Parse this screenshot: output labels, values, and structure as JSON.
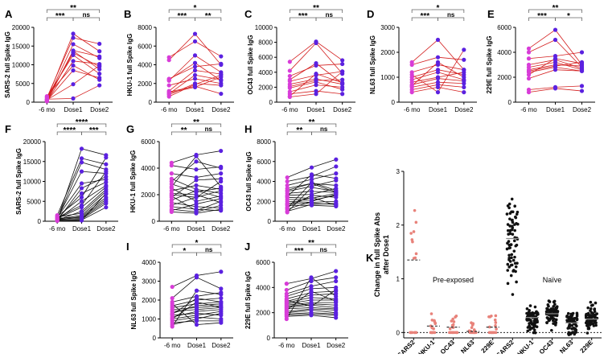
{
  "colors": {
    "pre_dot": "#d83cd8",
    "post_dot": "#5b21e0",
    "red_line": "#d42020",
    "black_line": "#111111",
    "k_pre": "#e8827a",
    "k_naive": "#111111",
    "bracket": "#666666"
  },
  "chart_data": [
    {
      "panel": "A",
      "type": "line",
      "line_color": "red",
      "ylabel": "SARS-2 full Spike IgG",
      "ylim": [
        0,
        20000
      ],
      "yticks": [
        0,
        5000,
        10000,
        15000,
        20000
      ],
      "categories": [
        "-6 mo",
        "Dose1",
        "Dose2"
      ],
      "series": [
        [
          200,
          13800,
          12200
        ],
        [
          500,
          15500,
          11800
        ],
        [
          1400,
          12600,
          7600
        ],
        [
          900,
          13200,
          9500
        ],
        [
          300,
          11000,
          10200
        ],
        [
          700,
          18300,
          13600
        ],
        [
          1200,
          17200,
          15600
        ],
        [
          400,
          8500,
          6500
        ],
        [
          600,
          4800,
          9800
        ],
        [
          1600,
          9800,
          6000
        ],
        [
          350,
          13700,
          8800
        ],
        [
          800,
          1000,
          4500
        ]
      ],
      "brackets": [
        {
          "a": 0,
          "b": 1,
          "t": "***",
          "lvl": 1
        },
        {
          "a": 1,
          "b": 2,
          "t": "ns",
          "lvl": 1
        },
        {
          "a": 0,
          "b": 2,
          "t": "**",
          "lvl": 2
        }
      ]
    },
    {
      "panel": "B",
      "type": "line",
      "line_color": "red",
      "ylabel": "HKU-1 full Spike IgG",
      "ylim": [
        0,
        8000
      ],
      "yticks": [
        0,
        2000,
        4000,
        6000,
        8000
      ],
      "categories": [
        "-6 mo",
        "Dose1",
        "Dose2"
      ],
      "series": [
        [
          4500,
          7300,
          4000
        ],
        [
          4800,
          6500,
          4900
        ],
        [
          2300,
          5000,
          3200
        ],
        [
          2400,
          4200,
          2300
        ],
        [
          2500,
          3800,
          4100
        ],
        [
          1200,
          3400,
          3000
        ],
        [
          900,
          2900,
          2400
        ],
        [
          1800,
          2500,
          2000
        ],
        [
          800,
          2000,
          1800
        ],
        [
          600,
          1900,
          2900
        ],
        [
          1100,
          1700,
          900
        ],
        [
          1000,
          1600,
          2700
        ]
      ],
      "brackets": [
        {
          "a": 0,
          "b": 1,
          "t": "***",
          "lvl": 1
        },
        {
          "a": 1,
          "b": 2,
          "t": "**",
          "lvl": 1
        },
        {
          "a": 0,
          "b": 2,
          "t": "*",
          "lvl": 2
        }
      ]
    },
    {
      "panel": "C",
      "type": "line",
      "line_color": "red",
      "ylabel": "OC43 full Spike IgG",
      "ylim": [
        0,
        10000
      ],
      "yticks": [
        0,
        2000,
        4000,
        6000,
        8000,
        10000
      ],
      "categories": [
        "-6 mo",
        "Dose1",
        "Dose2"
      ],
      "series": [
        [
          5400,
          8100,
          5600
        ],
        [
          4200,
          7900,
          3800
        ],
        [
          3500,
          4900,
          5100
        ],
        [
          2800,
          3600,
          4100
        ],
        [
          2400,
          3100,
          2400
        ],
        [
          2100,
          2900,
          3000
        ],
        [
          1900,
          2700,
          1700
        ],
        [
          1400,
          2300,
          2000
        ],
        [
          1100,
          1500,
          1100
        ],
        [
          800,
          3800,
          2600
        ],
        [
          700,
          1100,
          4100
        ],
        [
          3000,
          5200,
          2500
        ]
      ],
      "brackets": [
        {
          "a": 0,
          "b": 1,
          "t": "***",
          "lvl": 1
        },
        {
          "a": 1,
          "b": 2,
          "t": "ns",
          "lvl": 1
        },
        {
          "a": 0,
          "b": 2,
          "t": "**",
          "lvl": 2
        }
      ]
    },
    {
      "panel": "D",
      "type": "line",
      "line_color": "red",
      "ylabel": "NL63 full Spike IgG",
      "ylim": [
        0,
        3000
      ],
      "yticks": [
        0,
        1000,
        2000,
        3000
      ],
      "categories": [
        "-6 mo",
        "Dose1",
        "Dose2"
      ],
      "series": [
        [
          1600,
          2500,
          1300
        ],
        [
          1500,
          1800,
          1700
        ],
        [
          1200,
          1500,
          1300
        ],
        [
          1000,
          1300,
          1100
        ],
        [
          900,
          1200,
          900
        ],
        [
          800,
          1000,
          1200
        ],
        [
          700,
          950,
          850
        ],
        [
          600,
          800,
          750
        ],
        [
          500,
          700,
          600
        ],
        [
          400,
          600,
          400
        ],
        [
          1100,
          400,
          2100
        ],
        [
          650,
          1600,
          1000
        ]
      ],
      "brackets": [
        {
          "a": 0,
          "b": 1,
          "t": "***",
          "lvl": 1
        },
        {
          "a": 1,
          "b": 2,
          "t": "ns",
          "lvl": 1
        },
        {
          "a": 0,
          "b": 2,
          "t": "*",
          "lvl": 2
        }
      ]
    },
    {
      "panel": "E",
      "type": "line",
      "line_color": "red",
      "ylabel": "229E full Spike IgG",
      "ylim": [
        0,
        6000
      ],
      "yticks": [
        0,
        2000,
        4000,
        6000
      ],
      "categories": [
        "-6 mo",
        "Dose1",
        "Dose2"
      ],
      "series": [
        [
          4300,
          5800,
          3000
        ],
        [
          4000,
          5000,
          2800
        ],
        [
          3500,
          3700,
          4000
        ],
        [
          3000,
          3400,
          2700
        ],
        [
          2800,
          3200,
          2600
        ],
        [
          2600,
          3000,
          2900
        ],
        [
          2500,
          2900,
          3200
        ],
        [
          2400,
          2800,
          2500
        ],
        [
          2200,
          3500,
          3100
        ],
        [
          1900,
          2600,
          2500
        ],
        [
          1000,
          1200,
          1300
        ],
        [
          800,
          1100,
          900
        ]
      ],
      "brackets": [
        {
          "a": 0,
          "b": 1,
          "t": "***",
          "lvl": 1
        },
        {
          "a": 1,
          "b": 2,
          "t": "*",
          "lvl": 1
        },
        {
          "a": 0,
          "b": 2,
          "t": "**",
          "lvl": 2
        }
      ]
    },
    {
      "panel": "F",
      "type": "line",
      "line_color": "black",
      "ylabel": "SARS-2 full Spike IgG",
      "ylim": [
        0,
        20000
      ],
      "yticks": [
        0,
        5000,
        10000,
        15000,
        20000
      ],
      "categories": [
        "-6 mo",
        "Dose1",
        "Dose2"
      ],
      "series": [
        [
          300,
          18200,
          16600
        ],
        [
          1500,
          15800,
          14300
        ],
        [
          500,
          14800,
          13000
        ],
        [
          800,
          12500,
          12000
        ],
        [
          200,
          8300,
          11200
        ],
        [
          1000,
          9500,
          10500
        ],
        [
          600,
          7000,
          9800
        ],
        [
          400,
          5000,
          9000
        ],
        [
          700,
          3500,
          8600
        ],
        [
          300,
          2500,
          8000
        ],
        [
          1100,
          2000,
          7500
        ],
        [
          500,
          1500,
          6800
        ],
        [
          200,
          1200,
          6000
        ],
        [
          800,
          900,
          5500
        ],
        [
          400,
          700,
          5000
        ],
        [
          600,
          500,
          4500
        ],
        [
          300,
          300,
          3500
        ],
        [
          1200,
          6000,
          16000
        ],
        [
          900,
          4000,
          12500
        ],
        [
          100,
          200,
          7000
        ]
      ],
      "brackets": [
        {
          "a": 0,
          "b": 1,
          "t": "****",
          "lvl": 1
        },
        {
          "a": 1,
          "b": 2,
          "t": "***",
          "lvl": 1
        },
        {
          "a": 0,
          "b": 2,
          "t": "****",
          "lvl": 2
        }
      ]
    },
    {
      "panel": "G",
      "type": "line",
      "line_color": "black",
      "ylabel": "HKU-1 full Spike IgG",
      "ylim": [
        0,
        6000
      ],
      "yticks": [
        0,
        2000,
        4000,
        6000
      ],
      "categories": [
        "-6 mo",
        "Dose1",
        "Dose2"
      ],
      "series": [
        [
          4400,
          5000,
          5300
        ],
        [
          4200,
          3900,
          4100
        ],
        [
          3600,
          3300,
          3600
        ],
        [
          3200,
          2400,
          2100
        ],
        [
          3000,
          4500,
          4000
        ],
        [
          2800,
          2200,
          2500
        ],
        [
          2500,
          1500,
          1900
        ],
        [
          2300,
          2700,
          2400
        ],
        [
          2100,
          2000,
          1400
        ],
        [
          2000,
          1800,
          2300
        ],
        [
          1800,
          3100,
          3200
        ],
        [
          1600,
          2300,
          1800
        ],
        [
          1400,
          1100,
          1000
        ],
        [
          1200,
          1800,
          3000
        ],
        [
          1100,
          900,
          800
        ],
        [
          900,
          700,
          1200
        ],
        [
          800,
          1300,
          1700
        ],
        [
          700,
          600,
          900
        ],
        [
          1900,
          800,
          1500
        ],
        [
          2600,
          4900,
          2600
        ]
      ],
      "brackets": [
        {
          "a": 0,
          "b": 1,
          "t": "**",
          "lvl": 1
        },
        {
          "a": 1,
          "b": 2,
          "t": "ns",
          "lvl": 1
        },
        {
          "a": 0,
          "b": 2,
          "t": "**",
          "lvl": 2
        }
      ]
    },
    {
      "panel": "H",
      "type": "line",
      "line_color": "black",
      "ylabel": "OC43 full Spike IgG",
      "ylim": [
        0,
        8000
      ],
      "yticks": [
        0,
        2000,
        4000,
        6000,
        8000
      ],
      "categories": [
        "-6 mo",
        "Dose1",
        "Dose2"
      ],
      "series": [
        [
          4400,
          5400,
          6200
        ],
        [
          4000,
          4500,
          5500
        ],
        [
          3600,
          4200,
          4800
        ],
        [
          3300,
          3800,
          3600
        ],
        [
          3000,
          3500,
          4100
        ],
        [
          2800,
          3000,
          2900
        ],
        [
          2600,
          2700,
          3300
        ],
        [
          2400,
          2300,
          2800
        ],
        [
          2200,
          2100,
          2600
        ],
        [
          2000,
          1900,
          2000
        ],
        [
          1800,
          1800,
          1700
        ],
        [
          1600,
          1600,
          1500
        ],
        [
          1400,
          2600,
          2400
        ],
        [
          1200,
          2000,
          2700
        ],
        [
          1000,
          1700,
          1800
        ],
        [
          900,
          3400,
          3000
        ],
        [
          3100,
          3800,
          2900
        ],
        [
          2500,
          4700,
          4300
        ],
        [
          1700,
          2400,
          1600
        ],
        [
          1300,
          3900,
          3100
        ]
      ],
      "brackets": [
        {
          "a": 0,
          "b": 1,
          "t": "**",
          "lvl": 1
        },
        {
          "a": 1,
          "b": 2,
          "t": "ns",
          "lvl": 1
        },
        {
          "a": 0,
          "b": 2,
          "t": "**",
          "lvl": 2
        }
      ]
    },
    {
      "panel": "I",
      "type": "line",
      "line_color": "black",
      "ylabel": "NL63 full Spike IgG",
      "ylim": [
        0,
        4000
      ],
      "yticks": [
        0,
        1000,
        2000,
        3000,
        4000
      ],
      "categories": [
        "-6 mo",
        "Dose1",
        "Dose2"
      ],
      "series": [
        [
          2700,
          3300,
          3500
        ],
        [
          2100,
          3200,
          2600
        ],
        [
          1900,
          2200,
          2400
        ],
        [
          1700,
          2000,
          2100
        ],
        [
          1600,
          1800,
          1900
        ],
        [
          1500,
          1600,
          1700
        ],
        [
          1400,
          1500,
          1600
        ],
        [
          1300,
          1700,
          1800
        ],
        [
          1200,
          1300,
          1200
        ],
        [
          1100,
          1400,
          1500
        ],
        [
          1000,
          1200,
          1400
        ],
        [
          900,
          1100,
          1000
        ],
        [
          800,
          900,
          900
        ],
        [
          700,
          1000,
          1300
        ],
        [
          600,
          2500,
          2300
        ],
        [
          1800,
          700,
          800
        ],
        [
          1000,
          1900,
          1600
        ],
        [
          1250,
          2100,
          1900
        ]
      ],
      "brackets": [
        {
          "a": 0,
          "b": 1,
          "t": "*",
          "lvl": 1
        },
        {
          "a": 1,
          "b": 2,
          "t": "ns",
          "lvl": 1
        },
        {
          "a": 0,
          "b": 2,
          "t": "*",
          "lvl": 2
        }
      ]
    },
    {
      "panel": "J",
      "type": "line",
      "line_color": "black",
      "ylabel": "229E full Spike IgG",
      "ylim": [
        0,
        6000
      ],
      "yticks": [
        0,
        2000,
        4000,
        6000
      ],
      "categories": [
        "-6 mo",
        "Dose1",
        "Dose2"
      ],
      "series": [
        [
          4300,
          4700,
          5300
        ],
        [
          3800,
          4500,
          4800
        ],
        [
          3500,
          4100,
          4500
        ],
        [
          3300,
          3900,
          4000
        ],
        [
          3100,
          3600,
          3700
        ],
        [
          2900,
          3400,
          3500
        ],
        [
          2800,
          3200,
          3100
        ],
        [
          2700,
          3000,
          3000
        ],
        [
          2600,
          2800,
          2800
        ],
        [
          2500,
          2700,
          2600
        ],
        [
          2400,
          2600,
          2400
        ],
        [
          2300,
          2400,
          2300
        ],
        [
          2100,
          2300,
          2200
        ],
        [
          2000,
          2200,
          2000
        ],
        [
          1900,
          2000,
          1900
        ],
        [
          1800,
          1900,
          1800
        ],
        [
          1700,
          1800,
          1600
        ],
        [
          1500,
          4800,
          3300
        ],
        [
          2200,
          3700,
          2900
        ],
        [
          3000,
          2500,
          3800
        ]
      ],
      "brackets": [
        {
          "a": 0,
          "b": 1,
          "t": "***",
          "lvl": 1
        },
        {
          "a": 1,
          "b": 2,
          "t": "ns",
          "lvl": 1
        },
        {
          "a": 0,
          "b": 2,
          "t": "**",
          "lvl": 2
        }
      ]
    },
    {
      "panel": "K",
      "type": "scatter",
      "ylabel_lines": [
        "Change in full Spike Abs",
        "after Dose1"
      ],
      "ylim": [
        -0.1,
        3.0
      ],
      "yticks": [
        0,
        1,
        2,
        3
      ],
      "categories": [
        "SARS2",
        "HKU-1",
        "OC43",
        "NL63",
        "229E",
        "SARS2",
        "HKU-1",
        "OC43",
        "NL63",
        "229E"
      ],
      "groups": [
        {
          "name": "Pre-exposed",
          "category_indices": [
            0,
            1,
            2,
            3,
            4
          ],
          "medians": [
            1.35,
            0.12,
            0.1,
            0.02,
            0.1
          ]
        },
        {
          "name": "Naïve",
          "category_indices": [
            5,
            6,
            7,
            8,
            9
          ],
          "medians": [
            1.75,
            0.28,
            0.35,
            0.18,
            0.25
          ]
        }
      ],
      "reference_line_y": 0
    }
  ]
}
